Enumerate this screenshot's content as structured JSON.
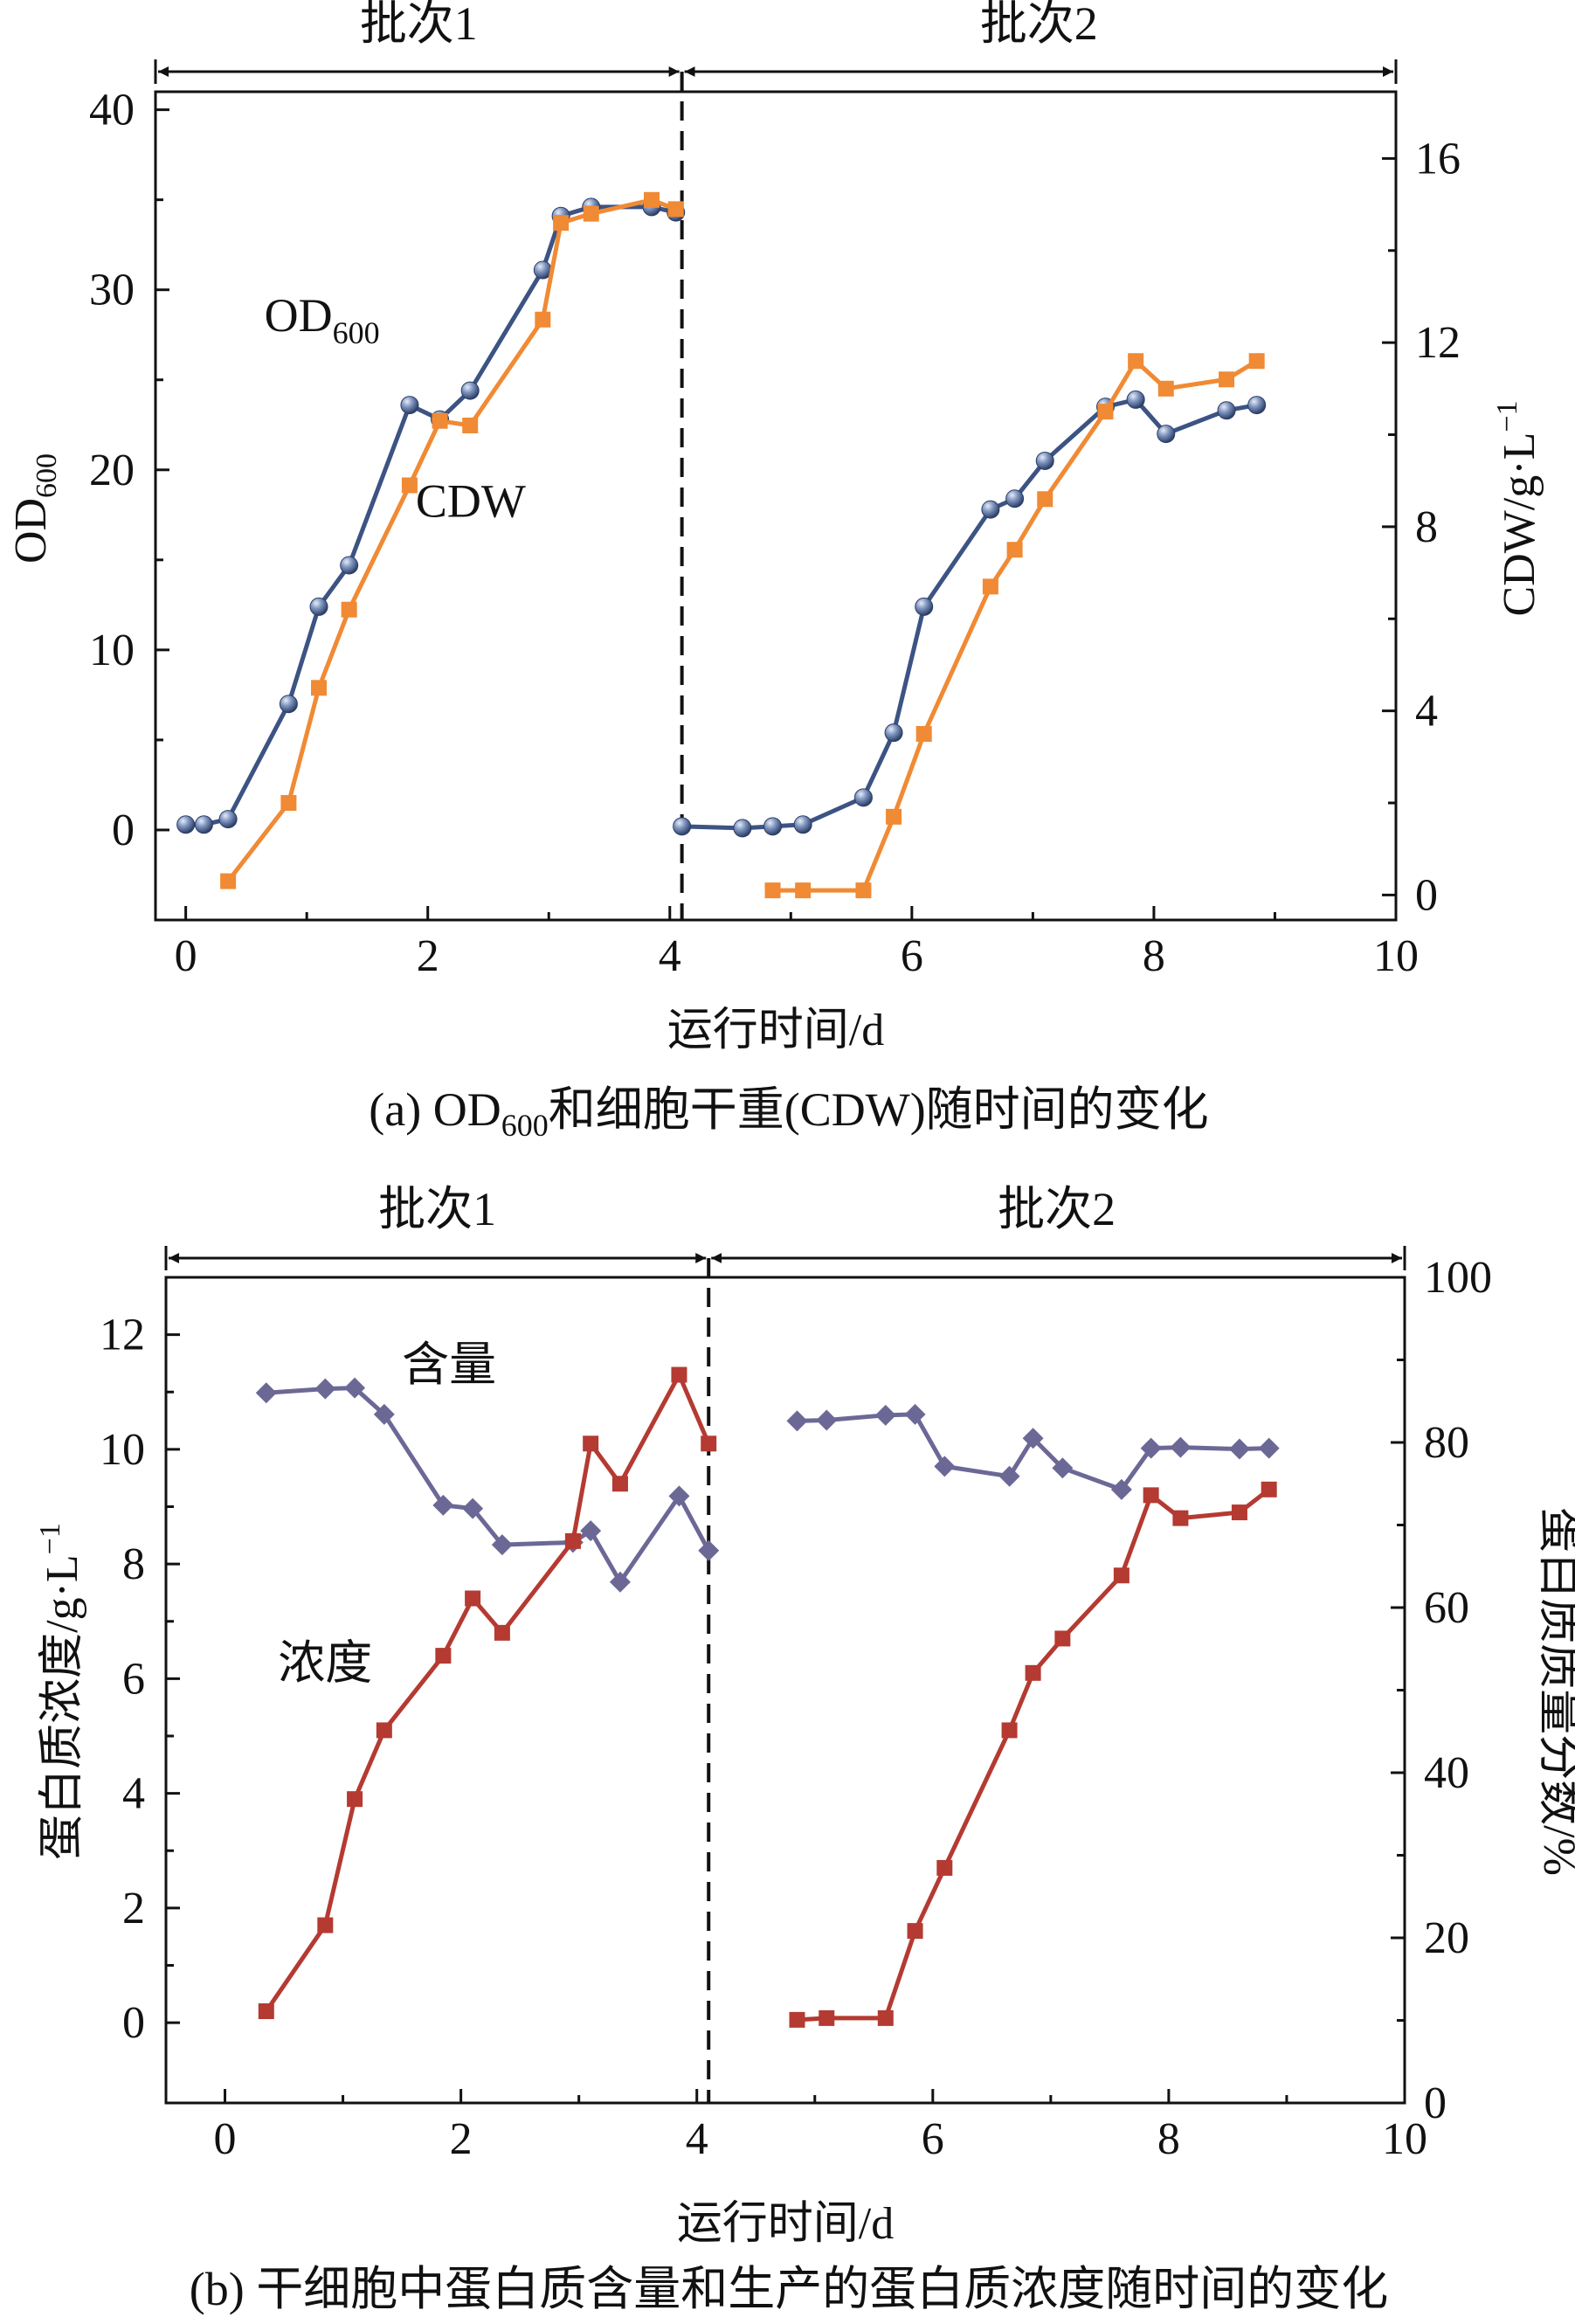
{
  "chart_data": [
    {
      "type": "line",
      "panel": "a",
      "caption": "(a) OD",
      "caption_sub": "600",
      "caption_rest": "和细胞干重(CDW)随时间的变化",
      "xlabel": "运行时间/d",
      "ylabel": "OD",
      "ylabel_sub": "600",
      "y2label": "CDW/g·L",
      "y2label_sup": "−1",
      "xlim": [
        -0.25,
        10
      ],
      "ylim": [
        -5,
        41
      ],
      "y2lim": [
        -0.543,
        17.45
      ],
      "xticks": [
        "0",
        "2",
        "4",
        "6",
        "8",
        "10"
      ],
      "yticks": [
        "0",
        "10",
        "20",
        "30",
        "40"
      ],
      "y2ticks": [
        "0",
        "4",
        "8",
        "12",
        "16"
      ],
      "batch_labels": [
        "批次1",
        "批次2"
      ],
      "batch_ranges": [
        [
          -0.25,
          4.1
        ],
        [
          4.1,
          10
        ]
      ],
      "divider_x": 4.1,
      "series_labels": [
        {
          "text": "OD",
          "sub": "600",
          "x": 0.65,
          "y": 27.7
        },
        {
          "text": "CDW",
          "sub": "",
          "x": 1.9,
          "y": 17.4
        }
      ],
      "series": [
        {
          "name": "OD600",
          "axis": "left",
          "color": "#3c5383",
          "marker": "sphere",
          "x": [
            0.0,
            0.15,
            0.35,
            0.85,
            1.1,
            1.35,
            1.85,
            2.1,
            2.35,
            2.95,
            3.1,
            3.35,
            3.85,
            4.05
          ],
          "y": [
            0.3,
            0.3,
            0.6,
            7.0,
            12.4,
            14.7,
            23.6,
            22.8,
            24.4,
            31.1,
            34.1,
            34.6,
            34.6,
            34.3
          ]
        },
        {
          "name": "OD600",
          "axis": "left",
          "color": "#3c5383",
          "marker": "sphere",
          "x": [
            4.1,
            4.6,
            4.85,
            5.1,
            5.6,
            5.85,
            6.1,
            6.65,
            6.85,
            7.1,
            7.6,
            7.85,
            8.1,
            8.6,
            8.85
          ],
          "y": [
            0.2,
            0.1,
            0.2,
            0.3,
            1.8,
            5.4,
            12.4,
            17.8,
            18.4,
            20.5,
            23.5,
            23.9,
            22.0,
            23.3,
            23.6
          ]
        },
        {
          "name": "CDW",
          "axis": "right",
          "color": "#f08a34",
          "marker": "square",
          "x": [
            0.35,
            0.85,
            1.1,
            1.35,
            1.85,
            2.1,
            2.35,
            2.95,
            3.1,
            3.35,
            3.85,
            4.05
          ],
          "y": [
            0.3,
            2.0,
            4.5,
            6.2,
            8.9,
            10.3,
            10.2,
            12.5,
            14.6,
            14.8,
            15.1,
            14.9
          ]
        },
        {
          "name": "CDW",
          "axis": "right",
          "color": "#f08a34",
          "marker": "square",
          "x": [
            4.85,
            5.1,
            5.6,
            5.85,
            6.1,
            6.65,
            6.85,
            7.1,
            7.6,
            7.85,
            8.1,
            8.6,
            8.85
          ],
          "y": [
            0.1,
            0.1,
            0.1,
            1.7,
            3.5,
            6.7,
            7.5,
            8.6,
            10.5,
            11.6,
            11.0,
            11.2,
            11.6
          ]
        }
      ]
    },
    {
      "type": "line",
      "panel": "b",
      "caption": "(b) 干细胞中蛋白质含量和生产的蛋白质浓度随时间的变化",
      "xlabel": "运行时间/d",
      "ylabel": "蛋白质浓度/g·L",
      "ylabel_sup": "−1",
      "y2label": "蛋白质质量分数/%",
      "xlim": [
        -0.5,
        10
      ],
      "ylim": [
        -1.4,
        13
      ],
      "y2lim": [
        0,
        100
      ],
      "xticks": [
        "0",
        "2",
        "4",
        "6",
        "8",
        "10"
      ],
      "yticks": [
        "0",
        "2",
        "4",
        "6",
        "8",
        "10",
        "12"
      ],
      "y2ticks": [
        "0",
        "20",
        "40",
        "60",
        "80",
        "100"
      ],
      "batch_labels": [
        "批次1",
        "批次2"
      ],
      "batch_ranges": [
        [
          -0.5,
          4.1
        ],
        [
          4.1,
          10
        ]
      ],
      "divider_x": 4.1,
      "series_labels": [
        {
          "text": "含量",
          "sub": "",
          "x": 1.5,
          "y": 11.2
        },
        {
          "text": "浓度",
          "sub": "",
          "x": 0.45,
          "y": 6.0
        }
      ],
      "series": [
        {
          "name": "含量",
          "axis": "right",
          "color": "#6c6896",
          "marker": "diamond",
          "x": [
            0.35,
            0.85,
            1.1,
            1.35,
            1.85,
            2.1,
            2.35,
            2.95,
            3.1,
            3.35,
            3.85,
            4.1
          ],
          "y": [
            86.0,
            86.5,
            86.6,
            83.4,
            72.4,
            72.0,
            67.6,
            67.9,
            69.3,
            63.1,
            73.5,
            66.9
          ]
        },
        {
          "name": "含量",
          "axis": "right",
          "color": "#6c6896",
          "marker": "diamond",
          "x": [
            4.85,
            5.1,
            5.6,
            5.85,
            6.1,
            6.65,
            6.85,
            7.1,
            7.6,
            7.85,
            8.1,
            8.6,
            8.85
          ],
          "y": [
            82.6,
            82.7,
            83.3,
            83.4,
            77.1,
            75.9,
            80.5,
            76.9,
            74.3,
            79.3,
            79.4,
            79.2,
            79.3
          ]
        },
        {
          "name": "浓度",
          "axis": "left",
          "color": "#b43a32",
          "marker": "square",
          "x": [
            0.35,
            0.85,
            1.1,
            1.35,
            1.85,
            2.1,
            2.35,
            2.95,
            3.1,
            3.35,
            3.85,
            4.1
          ],
          "y": [
            0.2,
            1.7,
            3.9,
            5.1,
            6.4,
            7.4,
            6.8,
            8.4,
            10.1,
            9.4,
            11.3,
            10.1
          ]
        },
        {
          "name": "浓度",
          "axis": "left",
          "color": "#b43a32",
          "marker": "square",
          "x": [
            4.85,
            5.1,
            5.6,
            5.85,
            6.1,
            6.65,
            6.85,
            7.1,
            7.6,
            7.85,
            8.1,
            8.6,
            8.85
          ],
          "y": [
            0.05,
            0.08,
            0.08,
            1.6,
            2.7,
            5.1,
            6.1,
            6.7,
            7.8,
            9.2,
            8.8,
            8.9,
            9.3
          ]
        }
      ]
    }
  ]
}
